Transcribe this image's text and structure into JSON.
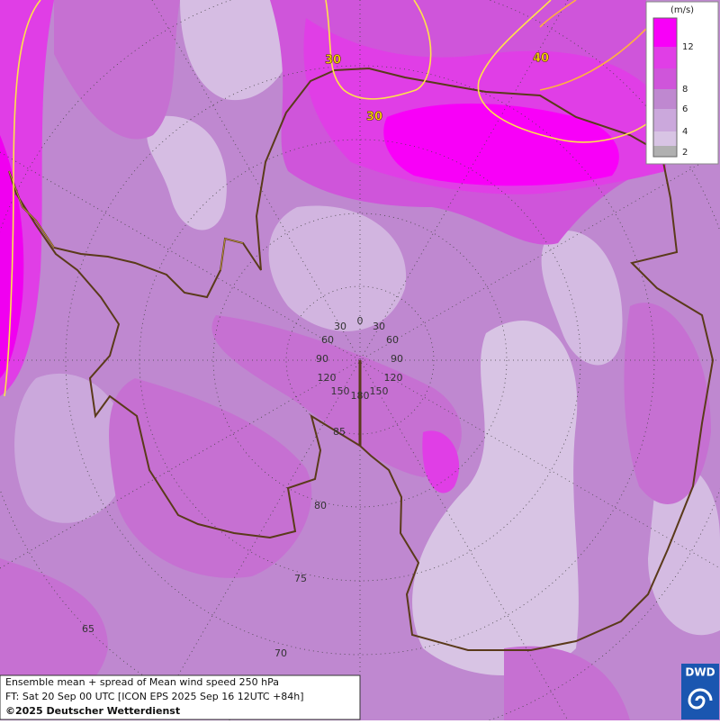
{
  "legend": {
    "unit": "(m/s)",
    "ticks": [
      12,
      8,
      6,
      4,
      2
    ]
  },
  "contour_labels": [
    "30",
    "30",
    "40"
  ],
  "longitude_labels": [
    "0",
    "30",
    "30",
    "60",
    "60",
    "90",
    "90",
    "120",
    "120",
    "150",
    "150",
    "180"
  ],
  "latitude_labels": [
    "85",
    "80",
    "75",
    "70",
    "65"
  ],
  "footer": {
    "line1": "Ensemble mean + spread of Mean wind speed 250 hPa",
    "line2": "FT: Sat 20 Sep 00 UTC [ICON EPS 2025 Sep 16 12UTC +84h]",
    "line3": "©2025 Deutscher Wetterdienst"
  },
  "logo": "DWD"
}
